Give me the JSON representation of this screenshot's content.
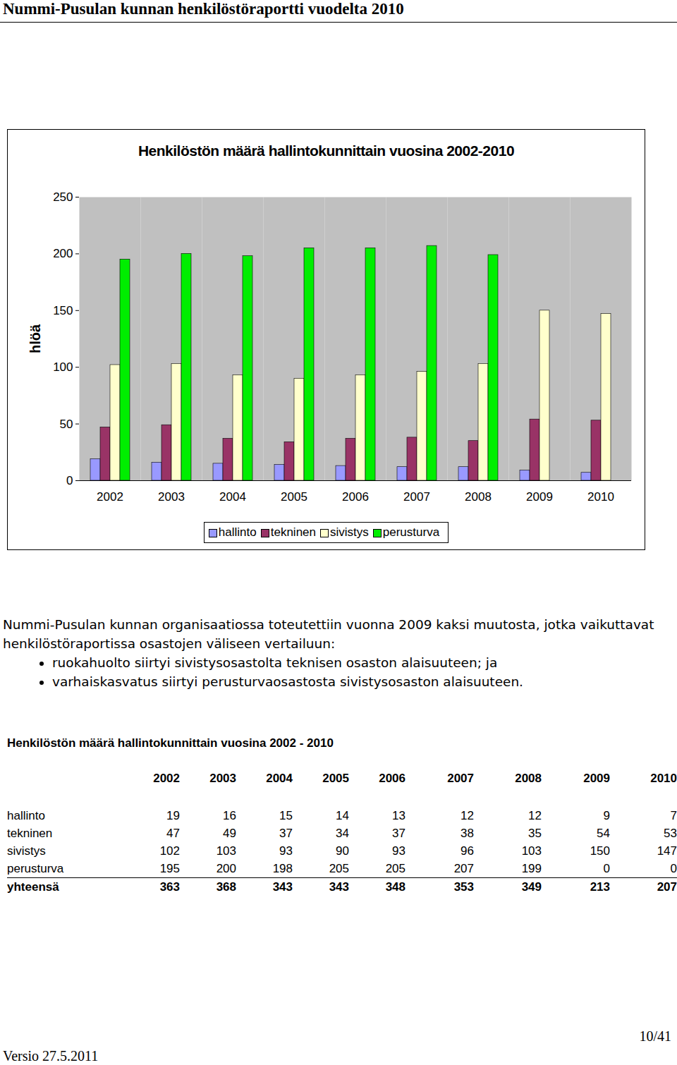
{
  "header": {
    "title": "Nummi-Pusulan kunnan henkilöstöraportti vuodelta 2010"
  },
  "chart_data": {
    "type": "bar",
    "title": "Henkilöstön määrä hallintokunnittain vuosina 2002-2010",
    "y_label": "hlöä",
    "categories": [
      "2002",
      "2003",
      "2004",
      "2005",
      "2006",
      "2007",
      "2008",
      "2009",
      "2010"
    ],
    "series": [
      {
        "name": "hallinto",
        "color": "#9999ff",
        "values": [
          19,
          16,
          15,
          14,
          13,
          12,
          12,
          9,
          7
        ]
      },
      {
        "name": "tekninen",
        "color": "#993366",
        "values": [
          47,
          49,
          37,
          34,
          37,
          38,
          35,
          54,
          53
        ]
      },
      {
        "name": "sivistys",
        "color": "#ffffcc",
        "values": [
          102,
          103,
          93,
          90,
          93,
          96,
          103,
          150,
          147
        ]
      },
      {
        "name": "perusturva",
        "color": "#00ee00",
        "values": [
          195,
          200,
          198,
          205,
          205,
          207,
          199,
          0,
          0
        ]
      }
    ],
    "ylim": [
      0,
      250
    ],
    "yticks": [
      0,
      50,
      100,
      150,
      200,
      250
    ],
    "grid": false,
    "legend": "bottom"
  },
  "text": {
    "intro": "Nummi-Pusulan kunnan organisaatiossa toteutettiin vuonna 2009 kaksi muutosta, jotka vaikuttavat henkilöstöraportissa osastojen väliseen vertailuun:",
    "bullets": [
      "ruokahuolto siirtyi sivistysosastolta teknisen osaston alaisuuteen; ja",
      "varhaiskasvatus siirtyi perusturvaosastosta sivistysosaston alaisuuteen."
    ]
  },
  "table": {
    "title": "Henkilöstön määrä hallintokunnittain vuosina 2002 - 2010",
    "total_label": "yhteensä",
    "totals": [
      363,
      368,
      343,
      343,
      348,
      353,
      349,
      213,
      207
    ]
  },
  "footer": {
    "version": "Versio 27.5.2011",
    "page": "10/41"
  }
}
